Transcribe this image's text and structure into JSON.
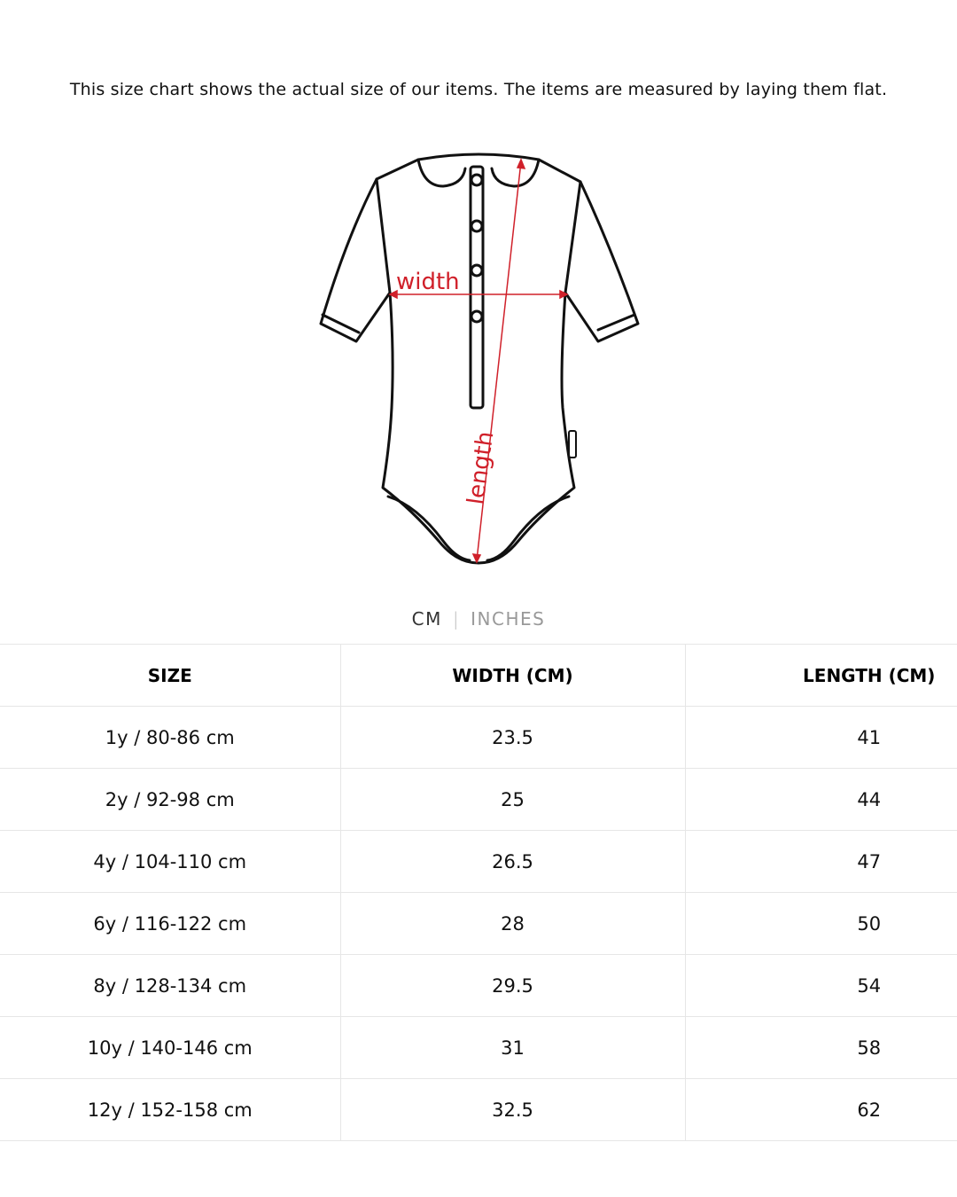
{
  "intro_text": "This size chart shows the actual size of our items. The items are measured by laying them flat.",
  "illustration": {
    "width_label": "width",
    "length_label": "length",
    "accent_color": "#d0202a"
  },
  "unit_toggle": {
    "cm": "CM",
    "separator": "|",
    "inches": "INCHES",
    "selected": "CM"
  },
  "table": {
    "headers": [
      "SIZE",
      "WIDTH (CM)",
      "LENGTH (CM)"
    ],
    "rows": [
      [
        "1y / 80-86 cm",
        "23.5",
        "41"
      ],
      [
        "2y / 92-98 cm",
        "25",
        "44"
      ],
      [
        "4y / 104-110 cm",
        "26.5",
        "47"
      ],
      [
        "6y / 116-122 cm",
        "28",
        "50"
      ],
      [
        "8y / 128-134 cm",
        "29.5",
        "54"
      ],
      [
        "10y / 140-146 cm",
        "31",
        "58"
      ],
      [
        "12y / 152-158 cm",
        "32.5",
        "62"
      ]
    ]
  }
}
